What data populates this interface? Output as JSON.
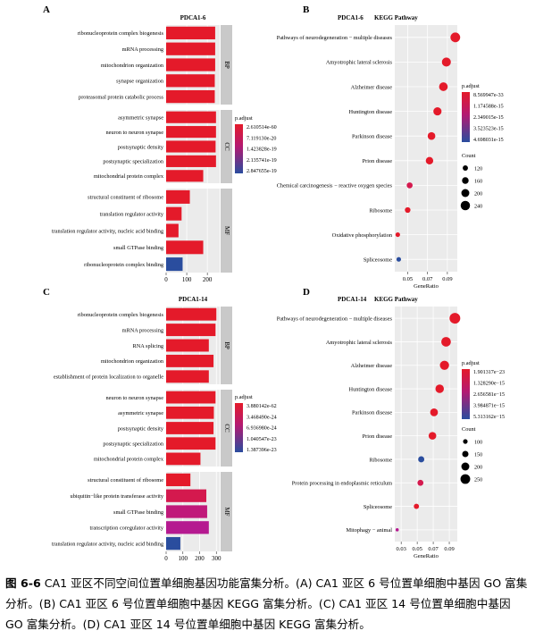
{
  "figure_caption": {
    "label": "图 6-6",
    "text": "CA1 亚区不同空间位置单细胞基因功能富集分析。(A) CA1 亚区 6 号位置单细胞中基因 GO 富集分析。(B) CA1 亚区 6 号位置单细胞中基因 KEGG 富集分析。(C) CA1 亚区 14 号位置单细胞中基因 GO 富集分析。(D) CA1 亚区 14 号位置单细胞中基因 KEGG 富集分析。"
  },
  "colors": {
    "high_sig": "#e41a2a",
    "mid_sig": "#c0197a",
    "low_sig": "#2a4d9e",
    "panel_bg": "#ebebeb",
    "strip_bg": "#c9c9c9"
  },
  "chart_data": [
    {
      "panel": "A",
      "type": "bar",
      "title": "PDCA1-6",
      "orientation": "horizontal",
      "xticks": [
        0,
        100,
        200
      ],
      "xlim": [
        0,
        260
      ],
      "legend": {
        "title": "p.adjust",
        "labels": [
          "2.610514e-60",
          "7.119130e-20",
          "1.423828e-19",
          "2.135741e-19",
          "2.847655e-19"
        ],
        "position": "right"
      },
      "groups": [
        {
          "label": "BP",
          "categories": [
            "ribonucleoprotein complex biogenesis",
            "mRNA processing",
            "mitochondrion organization",
            "synapse organization",
            "proteasomal protein catabolic process"
          ],
          "values": [
            238,
            238,
            238,
            236,
            236
          ],
          "colors": [
            "#e41a2a",
            "#e41a2a",
            "#e41a2a",
            "#e41a2a",
            "#e41a2a"
          ]
        },
        {
          "label": "CC",
          "categories": [
            "asymmetric synapse",
            "neuron to neuron synapse",
            "postsynaptic density",
            "postsynaptic specialization",
            "mitochondrial protein complex"
          ],
          "values": [
            242,
            242,
            240,
            242,
            180
          ],
          "colors": [
            "#e41a2a",
            "#e41a2a",
            "#e41a2a",
            "#e41a2a",
            "#e41a2a"
          ]
        },
        {
          "label": "MF",
          "categories": [
            "structural constituent of ribosome",
            "translation regulator activity",
            "translation regulator activity, nucleic acid binding",
            "small GTPase binding",
            "ribonucleoprotein complex binding"
          ],
          "values": [
            115,
            75,
            60,
            180,
            80
          ],
          "colors": [
            "#e41a2a",
            "#e41a2a",
            "#e41a2a",
            "#e41a2a",
            "#2a4d9e"
          ]
        }
      ]
    },
    {
      "panel": "B",
      "type": "scatter",
      "title": "PDCA1-6",
      "subtitle": "KEGG Pathway",
      "xlabel": "GeneRatio",
      "xticks": [
        0.05,
        0.07,
        0.09
      ],
      "xlim": [
        0.037,
        0.1
      ],
      "categories": [
        "Pathways of neurodegeneration − multiple diseases",
        "Amyotrophic lateral sclerosis",
        "Alzheimer disease",
        "Huntington disease",
        "Parkinson disease",
        "Prion disease",
        "Chemical carcinogenesis − reactive oxygen species",
        "Ribosome",
        "Oxidative phosphorylation",
        "Spliceosome"
      ],
      "gene_ratio": [
        0.098,
        0.089,
        0.086,
        0.08,
        0.074,
        0.072,
        0.052,
        0.05,
        0.04,
        0.041
      ],
      "count": [
        250,
        230,
        220,
        205,
        190,
        185,
        140,
        130,
        100,
        100
      ],
      "colors": [
        "#e41a2a",
        "#e41a2a",
        "#e41a2a",
        "#e41a2a",
        "#e41a2a",
        "#e41a2a",
        "#d4194e",
        "#e41a2a",
        "#e41a2a",
        "#2a4d9e"
      ],
      "legend_padj": {
        "title": "p.adjust",
        "labels": [
          "8.569947e-33",
          "1.174588e-15",
          "2.349015e-15",
          "3.523523e-15",
          "4.698031e-15"
        ]
      },
      "legend_count": {
        "title": "Count",
        "labels": [
          "120",
          "160",
          "200",
          "240"
        ]
      }
    },
    {
      "panel": "C",
      "type": "bar",
      "title": "PDCA1-14",
      "orientation": "horizontal",
      "xticks": [
        0,
        100,
        200,
        300
      ],
      "xlim": [
        0,
        320
      ],
      "legend": {
        "title": "p.adjust",
        "labels": [
          "3.880142e-62",
          "3.468490e-24",
          "6.936980e-24",
          "1.040547e-23",
          "1.387396e-23"
        ],
        "position": "right"
      },
      "groups": [
        {
          "label": "BP",
          "categories": [
            "ribonucleoprotein complex biogenesis",
            "mRNA processing",
            "RNA splicing",
            "mitochondrion organization",
            "establishment of protein localization to organelle"
          ],
          "values": [
            300,
            295,
            255,
            283,
            255
          ],
          "colors": [
            "#e41a2a",
            "#e41a2a",
            "#e41a2a",
            "#e41a2a",
            "#e41a2a"
          ]
        },
        {
          "label": "CC",
          "categories": [
            "neuron to neuron synapse",
            "asymmetric synapse",
            "postsynaptic density",
            "postsynaptic specialization",
            "mitochondrial protein complex"
          ],
          "values": [
            295,
            285,
            283,
            295,
            205
          ],
          "colors": [
            "#e41a2a",
            "#e41a2a",
            "#e41a2a",
            "#e41a2a",
            "#e41a2a"
          ]
        },
        {
          "label": "MF",
          "categories": [
            "structural constituent of ribosome",
            "ubiquitin−like protein transferase activity",
            "small GTPase binding",
            "transcription coregulator activity",
            "translation regulator activity, nucleic acid binding"
          ],
          "values": [
            145,
            240,
            245,
            255,
            85
          ],
          "colors": [
            "#e41a2a",
            "#d4194e",
            "#c0197a",
            "#b51a90",
            "#2a4d9e"
          ]
        }
      ]
    },
    {
      "panel": "D",
      "type": "scatter",
      "title": "PDCA1-14",
      "subtitle": "KEGG Pathway",
      "xlabel": "GeneRatio",
      "xticks": [
        0.03,
        0.05,
        0.07,
        0.09
      ],
      "xlim": [
        0.022,
        0.1
      ],
      "categories": [
        "Pathways of neurodegeneration − multiple diseases",
        "Amyotrophic lateral sclerosis",
        "Alzheimer disease",
        "Huntington disease",
        "Parkinson disease",
        "Prion disease",
        "Ribosome",
        "Protein processing in endoplasmic reticulum",
        "Spliceosome",
        "Mitophagy − animal"
      ],
      "gene_ratio": [
        0.097,
        0.086,
        0.084,
        0.078,
        0.071,
        0.069,
        0.055,
        0.054,
        0.049,
        0.025
      ],
      "count": [
        280,
        245,
        235,
        215,
        195,
        190,
        145,
        140,
        120,
        60
      ],
      "colors": [
        "#e41a2a",
        "#e41a2a",
        "#e41a2a",
        "#e41a2a",
        "#e41a2a",
        "#e41a2a",
        "#2a4d9e",
        "#d4194e",
        "#e41a2a",
        "#b51a90"
      ],
      "legend_padj": {
        "title": "p.adjust",
        "labels": [
          "1.901317e−23",
          "1.328290e−15",
          "2.656581e−15",
          "3.984871e−15",
          "5.313162e−15"
        ]
      },
      "legend_count": {
        "title": "Count",
        "labels": [
          "100",
          "150",
          "200",
          "250"
        ]
      }
    }
  ]
}
